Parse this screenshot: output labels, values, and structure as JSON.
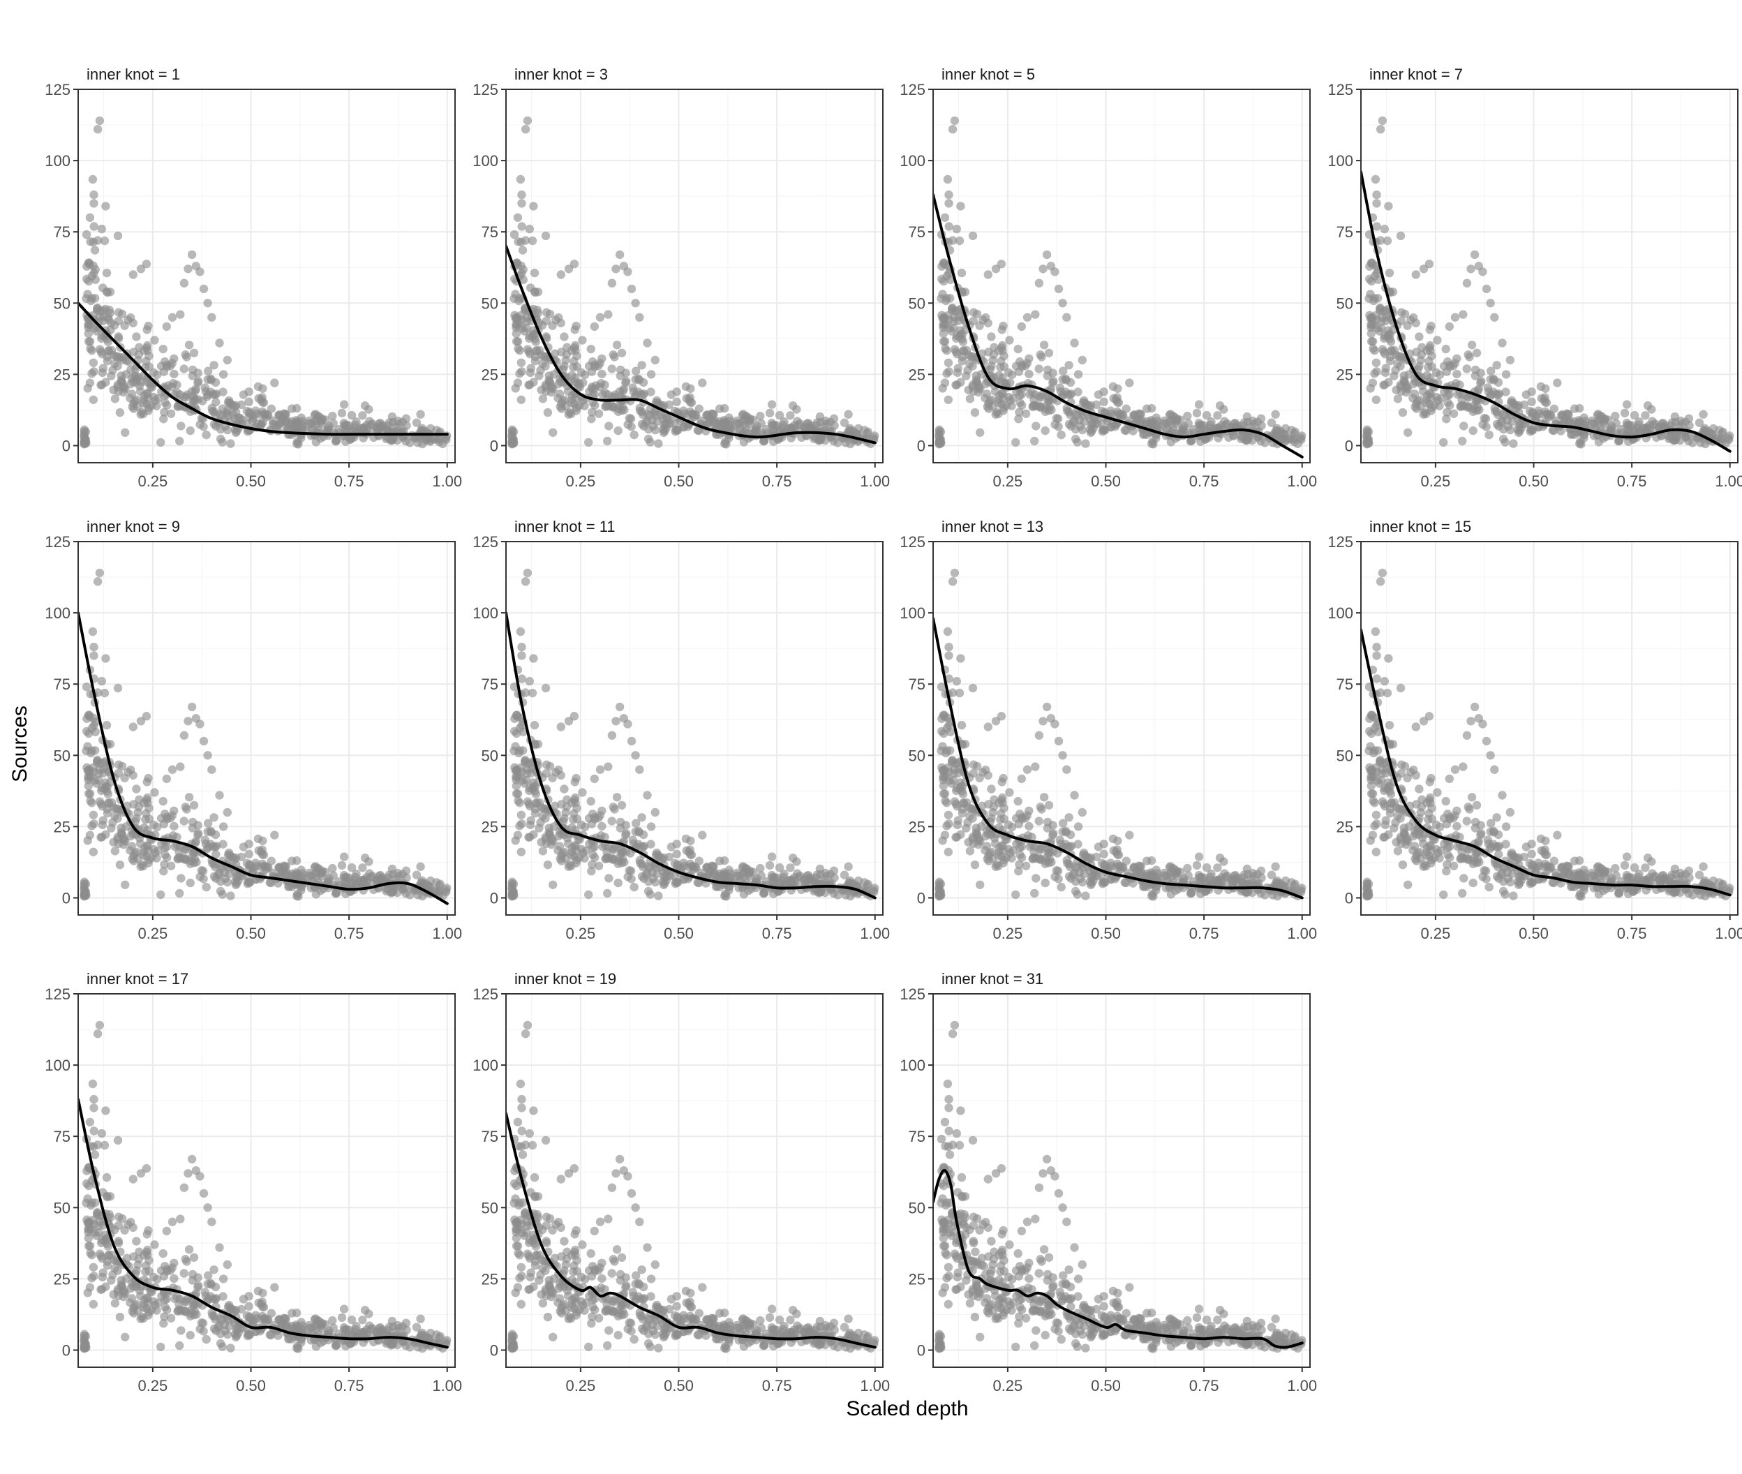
{
  "figure": {
    "xlabel": "Scaled depth",
    "ylabel": "Sources"
  },
  "colors": {
    "points": "#8c8c8c",
    "curve": "#000000",
    "grid_major": "#ebebeb",
    "grid_minor": "#f5f5f5",
    "panel_border": "#333333",
    "ticks": "#333333"
  },
  "chart_data": {
    "type": "scatter",
    "layout": "facet_wrap",
    "xlim": [
      0.06,
      1.02
    ],
    "ylim": [
      -6,
      125
    ],
    "x_ticks": [
      0.25,
      0.5,
      0.75,
      1.0
    ],
    "x_tick_labels": [
      "0.25",
      "0.50",
      "0.75",
      "1.00"
    ],
    "y_ticks": [
      0,
      25,
      50,
      75,
      100,
      125
    ],
    "y_tick_labels": [
      "0",
      "25",
      "50",
      "75",
      "100",
      "125"
    ],
    "grid": true,
    "points_note": "same grey scatter (semi-transparent) in every panel",
    "points_shape": [
      {
        "x": 0.08,
        "median": 50,
        "spread": 22
      },
      {
        "x": 0.12,
        "median": 40,
        "spread": 20
      },
      {
        "x": 0.16,
        "median": 30,
        "spread": 15
      },
      {
        "x": 0.2,
        "median": 24,
        "spread": 12
      },
      {
        "x": 0.25,
        "median": 20,
        "spread": 11
      },
      {
        "x": 0.3,
        "median": 18,
        "spread": 10
      },
      {
        "x": 0.35,
        "median": 16,
        "spread": 9
      },
      {
        "x": 0.4,
        "median": 14,
        "spread": 8
      },
      {
        "x": 0.45,
        "median": 11,
        "spread": 6
      },
      {
        "x": 0.5,
        "median": 9,
        "spread": 5
      },
      {
        "x": 0.6,
        "median": 6,
        "spread": 4
      },
      {
        "x": 0.7,
        "median": 5,
        "spread": 3
      },
      {
        "x": 0.8,
        "median": 4.5,
        "spread": 3
      },
      {
        "x": 0.9,
        "median": 4,
        "spread": 3
      },
      {
        "x": 1.0,
        "median": 2,
        "spread": 2
      }
    ],
    "notable_points": [
      {
        "x": 0.11,
        "y": 111
      },
      {
        "x": 0.115,
        "y": 114
      },
      {
        "x": 0.1,
        "y": 88
      },
      {
        "x": 0.1,
        "y": 85
      },
      {
        "x": 0.12,
        "y": 76
      },
      {
        "x": 0.13,
        "y": 84
      },
      {
        "x": 0.09,
        "y": 80
      },
      {
        "x": 0.11,
        "y": 72
      },
      {
        "x": 0.09,
        "y": 22
      },
      {
        "x": 0.1,
        "y": 26
      },
      {
        "x": 0.34,
        "y": 62
      },
      {
        "x": 0.35,
        "y": 67
      },
      {
        "x": 0.36,
        "y": 63
      },
      {
        "x": 0.37,
        "y": 61
      },
      {
        "x": 0.33,
        "y": 57
      },
      {
        "x": 0.38,
        "y": 55
      },
      {
        "x": 0.32,
        "y": 46
      },
      {
        "x": 0.39,
        "y": 50
      },
      {
        "x": 0.4,
        "y": 45
      },
      {
        "x": 0.22,
        "y": 62
      },
      {
        "x": 0.2,
        "y": 60
      },
      {
        "x": 0.3,
        "y": 45
      },
      {
        "x": 0.56,
        "y": 22
      },
      {
        "x": 0.53,
        "y": 20
      },
      {
        "x": 0.42,
        "y": 36
      },
      {
        "x": 0.44,
        "y": 30
      },
      {
        "x": 0.43,
        "y": 25
      }
    ],
    "panels": [
      {
        "title": "inner knot = 1",
        "curve": {
          "x": [
            0.06,
            0.1,
            0.15,
            0.2,
            0.25,
            0.3,
            0.35,
            0.4,
            0.45,
            0.5,
            0.55,
            0.6,
            0.7,
            0.8,
            0.9,
            1.0
          ],
          "y": [
            50,
            44,
            37,
            30,
            23,
            17,
            13,
            9.5,
            7.5,
            6,
            5,
            4.5,
            4,
            4,
            4,
            4
          ]
        }
      },
      {
        "title": "inner knot = 3",
        "curve": {
          "x": [
            0.06,
            0.1,
            0.15,
            0.2,
            0.25,
            0.3,
            0.35,
            0.4,
            0.45,
            0.5,
            0.55,
            0.6,
            0.7,
            0.8,
            0.9,
            1.0
          ],
          "y": [
            70,
            55,
            38,
            25,
            18,
            16,
            16,
            16,
            13,
            10,
            7,
            5,
            3,
            4.5,
            4,
            1
          ]
        }
      },
      {
        "title": "inner knot = 5",
        "curve": {
          "x": [
            0.06,
            0.1,
            0.15,
            0.2,
            0.25,
            0.3,
            0.35,
            0.4,
            0.45,
            0.5,
            0.55,
            0.6,
            0.65,
            0.7,
            0.75,
            0.8,
            0.85,
            0.9,
            0.95,
            1.0
          ],
          "y": [
            88,
            66,
            42,
            24,
            20,
            21,
            19,
            15,
            12,
            10,
            8,
            6,
            4,
            3,
            4,
            5,
            5.5,
            4,
            0,
            -4
          ]
        }
      },
      {
        "title": "inner knot = 7",
        "curve": {
          "x": [
            0.06,
            0.1,
            0.15,
            0.2,
            0.25,
            0.3,
            0.35,
            0.4,
            0.45,
            0.5,
            0.55,
            0.6,
            0.65,
            0.7,
            0.75,
            0.8,
            0.85,
            0.9,
            0.95,
            1.0
          ],
          "y": [
            96,
            68,
            42,
            25,
            21,
            20,
            18,
            15,
            11,
            8,
            7,
            6.5,
            5,
            3.5,
            3,
            4,
            5.5,
            5,
            2,
            -2
          ]
        }
      },
      {
        "title": "inner knot = 9",
        "curve": {
          "x": [
            0.06,
            0.1,
            0.15,
            0.2,
            0.25,
            0.3,
            0.35,
            0.4,
            0.45,
            0.5,
            0.55,
            0.6,
            0.65,
            0.7,
            0.75,
            0.8,
            0.85,
            0.9,
            0.95,
            1.0
          ],
          "y": [
            100,
            72,
            42,
            25,
            21,
            20,
            18,
            14,
            11,
            8,
            7,
            6,
            5,
            4,
            3,
            3.5,
            5,
            5,
            2,
            -2
          ]
        }
      },
      {
        "title": "inner knot = 11",
        "curve": {
          "x": [
            0.06,
            0.1,
            0.15,
            0.2,
            0.25,
            0.3,
            0.35,
            0.4,
            0.45,
            0.5,
            0.55,
            0.6,
            0.65,
            0.7,
            0.75,
            0.8,
            0.85,
            0.9,
            0.95,
            1.0
          ],
          "y": [
            100,
            68,
            40,
            25,
            22,
            20,
            19,
            16,
            12,
            9,
            7,
            5.5,
            5,
            4.5,
            3.5,
            3.5,
            4,
            4,
            3,
            0
          ]
        }
      },
      {
        "title": "inner knot = 13",
        "curve": {
          "x": [
            0.06,
            0.1,
            0.15,
            0.2,
            0.25,
            0.3,
            0.35,
            0.4,
            0.45,
            0.5,
            0.55,
            0.6,
            0.65,
            0.7,
            0.75,
            0.8,
            0.85,
            0.9,
            0.95,
            1.0
          ],
          "y": [
            98,
            70,
            40,
            26,
            22,
            20,
            19,
            16,
            12,
            9,
            7.5,
            6,
            5,
            4.5,
            4,
            3.5,
            3.5,
            3.5,
            2.5,
            0
          ]
        }
      },
      {
        "title": "inner knot = 15",
        "curve": {
          "x": [
            0.06,
            0.1,
            0.15,
            0.2,
            0.25,
            0.3,
            0.35,
            0.4,
            0.45,
            0.5,
            0.55,
            0.6,
            0.65,
            0.7,
            0.75,
            0.8,
            0.85,
            0.9,
            0.95,
            1.0
          ],
          "y": [
            94,
            68,
            40,
            27,
            22,
            20,
            18,
            14,
            11,
            8,
            7,
            5.5,
            5,
            4.5,
            4.5,
            4,
            4,
            4,
            3,
            1
          ]
        }
      },
      {
        "title": "inner knot = 17",
        "curve": {
          "x": [
            0.06,
            0.1,
            0.15,
            0.2,
            0.25,
            0.3,
            0.35,
            0.4,
            0.45,
            0.5,
            0.55,
            0.6,
            0.65,
            0.7,
            0.75,
            0.8,
            0.85,
            0.9,
            0.95,
            1.0
          ],
          "y": [
            88,
            62,
            37,
            26,
            22,
            21,
            19,
            15,
            12,
            8,
            8,
            6,
            5,
            4.5,
            4,
            4,
            4.5,
            4,
            2.5,
            1
          ]
        }
      },
      {
        "title": "inner knot = 19",
        "curve": {
          "x": [
            0.06,
            0.1,
            0.15,
            0.2,
            0.25,
            0.275,
            0.3,
            0.325,
            0.35,
            0.4,
            0.45,
            0.5,
            0.55,
            0.6,
            0.65,
            0.7,
            0.75,
            0.8,
            0.85,
            0.9,
            0.95,
            1.0
          ],
          "y": [
            83,
            60,
            37,
            26,
            21,
            22,
            19,
            20,
            19,
            15,
            12,
            8,
            8,
            6,
            5,
            4.5,
            4,
            4,
            4.5,
            4,
            2.5,
            1
          ]
        }
      },
      {
        "title": "inner knot = 31",
        "curve": {
          "x": [
            0.06,
            0.075,
            0.09,
            0.105,
            0.12,
            0.15,
            0.18,
            0.2,
            0.25,
            0.275,
            0.3,
            0.325,
            0.35,
            0.375,
            0.4,
            0.45,
            0.5,
            0.525,
            0.55,
            0.6,
            0.65,
            0.7,
            0.75,
            0.8,
            0.85,
            0.9,
            0.93,
            0.96,
            1.0
          ],
          "y": [
            52,
            60,
            63,
            58,
            45,
            28,
            25,
            23,
            21,
            21,
            19,
            20,
            19,
            16,
            14,
            11,
            8,
            9,
            7,
            6,
            5,
            4.5,
            4,
            4.5,
            4,
            4,
            1.5,
            1,
            2.5
          ]
        }
      }
    ]
  }
}
